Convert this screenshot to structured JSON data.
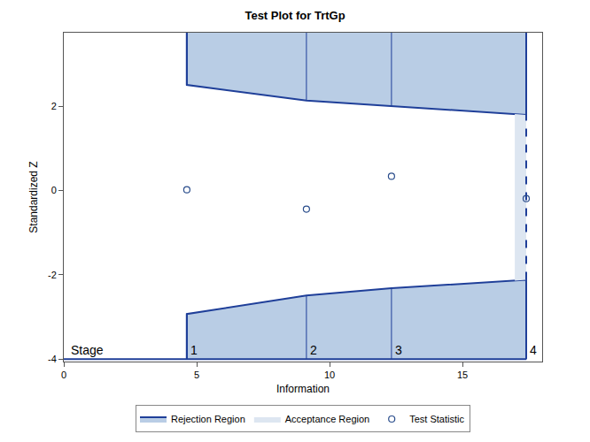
{
  "chart_data": {
    "type": "sequential",
    "title": "Test Plot for TrtGp",
    "x_label": "Information",
    "y_label": "Standardized Z",
    "xlim": [
      0,
      18
    ],
    "ylim": [
      -4.06,
      3.75
    ],
    "xticks": [
      0,
      5,
      10,
      15
    ],
    "yticks": [
      -4,
      -2,
      0,
      2
    ],
    "stage_label": "Stage",
    "stages": [
      "1",
      "2",
      "3",
      "4"
    ],
    "information": [
      4.63,
      9.13,
      12.33,
      17.4
    ],
    "upper_boundary": [
      2.51,
      2.14,
      2.01,
      1.8
    ],
    "lower_boundary": [
      -2.93,
      -2.49,
      -2.32,
      -2.12
    ],
    "stage_axis": -4,
    "acceptance_start": 16.97,
    "regions": [
      {
        "name": "Rejection Region",
        "color": "#b9cde5"
      },
      {
        "name": "Acceptance Region",
        "color": "#dde6f1"
      }
    ],
    "boundary_color": "#1f3f99",
    "series": [
      {
        "name": "Test Statistic",
        "color": "#2a4d8c",
        "marker": "circle-open",
        "values": [
          0.02,
          -0.44,
          0.34,
          -0.19
        ]
      }
    ],
    "grid": false
  }
}
